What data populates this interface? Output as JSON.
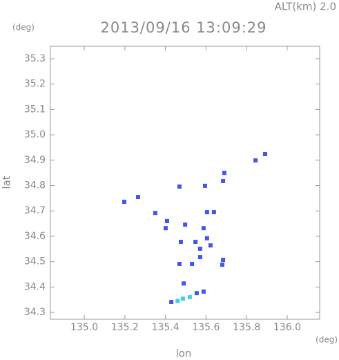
{
  "alt_label": "ALT(km) 2.0",
  "chart_data": {
    "type": "scatter",
    "title": "2013/09/16 13:09:29",
    "y_unit": "(deg)",
    "x_unit": "(deg)",
    "ylabel": "lat",
    "xlabel": "lon",
    "xlim": [
      134.833,
      136.16
    ],
    "ylim": [
      34.273,
      35.349
    ],
    "xticks": [
      {
        "value": 135.0,
        "label": "135.0"
      },
      135.2,
      135.4,
      135.6,
      135.8,
      {
        "value": 136.0,
        "label": "136.0"
      }
    ],
    "yticks": [
      34.3,
      34.4,
      34.5,
      34.6,
      34.7,
      34.8,
      34.9,
      {
        "value": 35.0,
        "label": "35.0"
      },
      35.1,
      35.2,
      35.3
    ],
    "series": [
      {
        "color": "#4455ee",
        "x": [
          135.891,
          135.844,
          135.69,
          135.684,
          135.595,
          135.469,
          135.265,
          135.197,
          135.35,
          135.605,
          135.639,
          135.408,
          135.401,
          135.497,
          135.588,
          135.548,
          135.605,
          135.476,
          135.571,
          135.622,
          135.571,
          135.684,
          135.68,
          135.469,
          135.531,
          135.49,
          135.588,
          135.554,
          135.429
        ],
        "values": [
          34.924,
          34.899,
          34.85,
          34.818,
          34.799,
          34.796,
          34.755,
          34.736,
          34.692,
          34.695,
          34.695,
          34.66,
          34.632,
          34.646,
          34.632,
          34.578,
          34.592,
          34.578,
          34.551,
          34.564,
          34.518,
          34.507,
          34.488,
          34.491,
          34.491,
          34.414,
          34.382,
          34.376,
          34.341
        ]
      },
      {
        "color": "#44ccee",
        "x": [
          135.486,
          135.46,
          135.52
        ],
        "values": [
          34.354,
          34.345,
          34.36
        ]
      }
    ]
  }
}
